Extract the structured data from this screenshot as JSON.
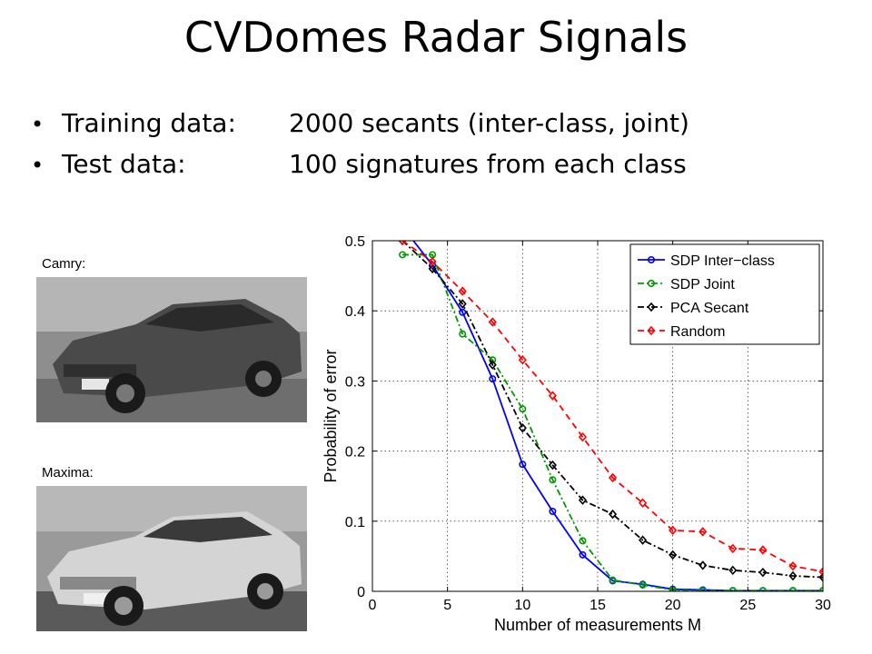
{
  "slide": {
    "title": "CVDomes Radar Signals",
    "bullets": [
      {
        "label": "Training data:",
        "text": "2000 secants (inter-class, joint)"
      },
      {
        "label": "Test data:",
        "text": "100 signatures from each class"
      }
    ]
  },
  "photos": [
    {
      "caption": "Camry:",
      "body_color": "#4a4a4a"
    },
    {
      "caption": "Maxima:",
      "body_color": "#d4d4d4"
    }
  ],
  "chart_data": {
    "type": "line",
    "title": "",
    "xlabel": "Number of measurements M",
    "ylabel": "Probability of error",
    "xlim": [
      0,
      30
    ],
    "ylim": [
      0,
      0.5
    ],
    "xticks": [
      0,
      5,
      10,
      15,
      20,
      25,
      30
    ],
    "yticks": [
      0,
      0.1,
      0.2,
      0.3,
      0.4,
      0.5
    ],
    "xtick_labels": [
      "0",
      "5",
      "10",
      "15",
      "20",
      "25",
      "30"
    ],
    "ytick_labels": [
      "0",
      "0.1",
      "0.2",
      "0.3",
      "0.4",
      "0.5"
    ],
    "grid": true,
    "legend_position": "top-right",
    "series": [
      {
        "name": "SDP Inter−class",
        "color": "#0000ff",
        "style": "solid",
        "marker": "circle",
        "x": [
          2,
          4,
          6,
          8,
          10,
          12,
          14,
          16,
          18,
          20,
          22,
          24,
          26,
          28,
          30
        ],
        "y": [
          0.52,
          0.465,
          0.398,
          0.303,
          0.181,
          0.114,
          0.052,
          0.015,
          0.01,
          0.003,
          0.002,
          0.001,
          0.001,
          0.001,
          0.001
        ]
      },
      {
        "name": "SDP Joint",
        "color": "#009900",
        "style": "dashdot",
        "marker": "circle",
        "x": [
          2,
          4,
          6,
          8,
          10,
          12,
          14,
          16,
          18,
          20,
          22,
          24,
          26,
          28,
          30
        ],
        "y": [
          0.48,
          0.48,
          0.367,
          0.33,
          0.26,
          0.159,
          0.072,
          0.016,
          0.009,
          0.002,
          0.001,
          0.001,
          0.001,
          0.001,
          0.001
        ]
      },
      {
        "name": "PCA Secant",
        "color": "#000000",
        "style": "dashdot",
        "marker": "diamond",
        "x": [
          2,
          4,
          6,
          8,
          10,
          12,
          14,
          16,
          18,
          20,
          22,
          24,
          26,
          28,
          30
        ],
        "y": [
          0.5,
          0.46,
          0.41,
          0.323,
          0.233,
          0.18,
          0.13,
          0.11,
          0.073,
          0.052,
          0.037,
          0.03,
          0.027,
          0.022,
          0.02
        ]
      },
      {
        "name": "Random",
        "color": "#ff0000",
        "style": "dashed",
        "marker": "diamond",
        "x": [
          2,
          4,
          6,
          8,
          10,
          12,
          14,
          16,
          18,
          20,
          22,
          24,
          26,
          28,
          30
        ],
        "y": [
          0.5,
          0.47,
          0.428,
          0.384,
          0.33,
          0.279,
          0.22,
          0.162,
          0.126,
          0.087,
          0.085,
          0.061,
          0.059,
          0.036,
          0.028
        ]
      }
    ]
  }
}
